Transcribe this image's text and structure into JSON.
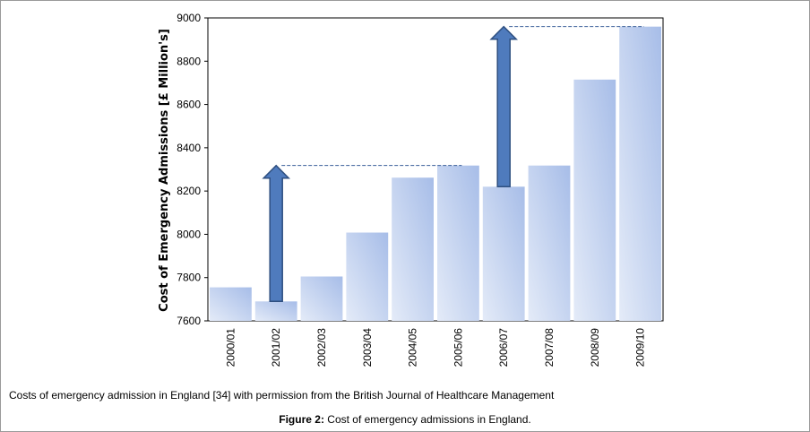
{
  "chart_data": {
    "type": "bar",
    "categories": [
      "2000/01",
      "2001/02",
      "2002/03",
      "2003/04",
      "2004/05",
      "2005/06",
      "2006/07",
      "2007/08",
      "2008/09",
      "2009/10"
    ],
    "values": [
      7755,
      7690,
      7805,
      8008,
      8262,
      8318,
      8220,
      8318,
      8715,
      8960
    ],
    "ylabel": "Cost of Emergency Admissions [£ Million's]",
    "xlabel": "",
    "ylim": [
      7600,
      9000
    ],
    "yticks": [
      7600,
      7800,
      8000,
      8200,
      8400,
      8600,
      8800,
      9000
    ],
    "grid": false,
    "annotations": [
      {
        "kind": "arrow",
        "from_category": "2001/02",
        "from_value": 7690,
        "to_value": 8318
      },
      {
        "kind": "dashed-line",
        "from_category": "2001/02",
        "to_category": "2005/06",
        "value": 8318
      },
      {
        "kind": "arrow",
        "from_category": "2006/07",
        "from_value": 8220,
        "to_value": 8960
      },
      {
        "kind": "dashed-line",
        "from_category": "2006/07",
        "to_category": "2009/10",
        "value": 8960
      }
    ],
    "colors": {
      "bar_light": "#e4ebf8",
      "bar_dark": "#a7bde8",
      "arrow": "#4f7bbd",
      "arrow_stroke": "#2e4f80",
      "dash": "#3a5f99"
    }
  },
  "caption": "Costs of emergency admission in England [34] with permission from the British Journal of Healthcare Management",
  "figure": {
    "label": "Figure 2:",
    "text": " Cost of emergency admissions in England."
  }
}
